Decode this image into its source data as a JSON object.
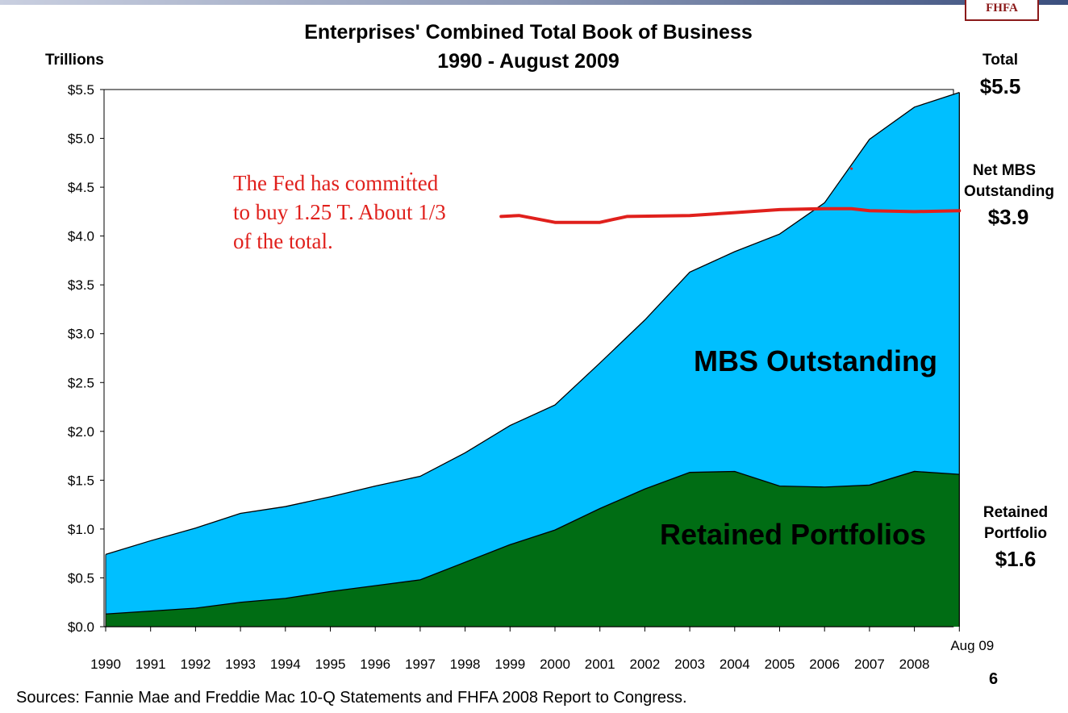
{
  "header": {
    "logo_text": "FHFA"
  },
  "title_line1": "Enterprises' Combined Total Book of Business",
  "title_line2": "1990 - August 2009",
  "units_label": "Trillions",
  "side_labels": {
    "total_label": "Total",
    "total_value": "$5.5",
    "net_mbs_label_line1": "Net MBS",
    "net_mbs_label_line2": "Outstanding",
    "net_mbs_value": "$3.9",
    "retained_label_line1": "Retained",
    "retained_label_line2": "Portfolio",
    "retained_value": "$1.6"
  },
  "series_labels": {
    "mbs": "MBS Outstanding",
    "retained": "Retained Portfolios"
  },
  "annotation": {
    "line1": "The Fed has committed",
    "line2": "to buy 1.25 T.  About 1/3",
    "line3": "of the total."
  },
  "sources": "Sources: Fannie Mae and Freddie Mac 10-Q Statements and FHFA 2008 Report to Congress.",
  "page_number": "6",
  "colors": {
    "mbs": "#00bfff",
    "retained": "#006d14",
    "annotation": "#e0201c",
    "outline": "#000000"
  },
  "chart_data": {
    "type": "area",
    "title": "Enterprises' Combined Total Book of Business 1990 - August 2009",
    "xlabel": "",
    "ylabel": "Trillions",
    "ylim": [
      0,
      5.5
    ],
    "y_ticks": [
      0,
      0.5,
      1.0,
      1.5,
      2.0,
      2.5,
      3.0,
      3.5,
      4.0,
      4.5,
      5.0,
      5.5
    ],
    "y_tick_labels": [
      "$0.0",
      "$0.5",
      "$1.0",
      "$1.5",
      "$2.0",
      "$2.5",
      "$3.0",
      "$3.5",
      "$4.0",
      "$4.5",
      "$5.0",
      "$5.5"
    ],
    "categories": [
      "1990",
      "1991",
      "1992",
      "1993",
      "1994",
      "1995",
      "1996",
      "1997",
      "1998",
      "1999",
      "2000",
      "2001",
      "2002",
      "2003",
      "2004",
      "2005",
      "2006",
      "2007",
      "2008",
      "Aug 09"
    ],
    "stacked": true,
    "series": [
      {
        "name": "Retained Portfolios",
        "values": [
          0.13,
          0.16,
          0.19,
          0.25,
          0.29,
          0.36,
          0.42,
          0.48,
          0.66,
          0.84,
          0.99,
          1.21,
          1.41,
          1.58,
          1.59,
          1.44,
          1.43,
          1.45,
          1.59,
          1.56
        ]
      },
      {
        "name": "MBS Outstanding",
        "values": [
          0.61,
          0.72,
          0.82,
          0.91,
          0.94,
          0.97,
          1.02,
          1.06,
          1.12,
          1.22,
          1.28,
          1.49,
          1.73,
          2.05,
          2.25,
          2.58,
          2.91,
          3.54,
          3.73,
          3.91
        ]
      }
    ],
    "totals": [
      0.74,
      0.88,
      1.01,
      1.16,
      1.23,
      1.33,
      1.44,
      1.54,
      1.78,
      2.06,
      2.27,
      2.7,
      3.14,
      3.63,
      3.84,
      4.02,
      4.34,
      4.99,
      5.32,
      5.47
    ],
    "annotation_line": {
      "description": "hand-drawn red line",
      "x": [
        8.8,
        9.2,
        10.0,
        11.0,
        11.6,
        13.0,
        14.0,
        15.0,
        16.0,
        16.6,
        17.0,
        18.0,
        19.0
      ],
      "y": [
        4.2,
        4.21,
        4.14,
        4.14,
        4.2,
        4.21,
        4.24,
        4.27,
        4.28,
        4.28,
        4.26,
        4.25,
        4.26
      ]
    }
  }
}
